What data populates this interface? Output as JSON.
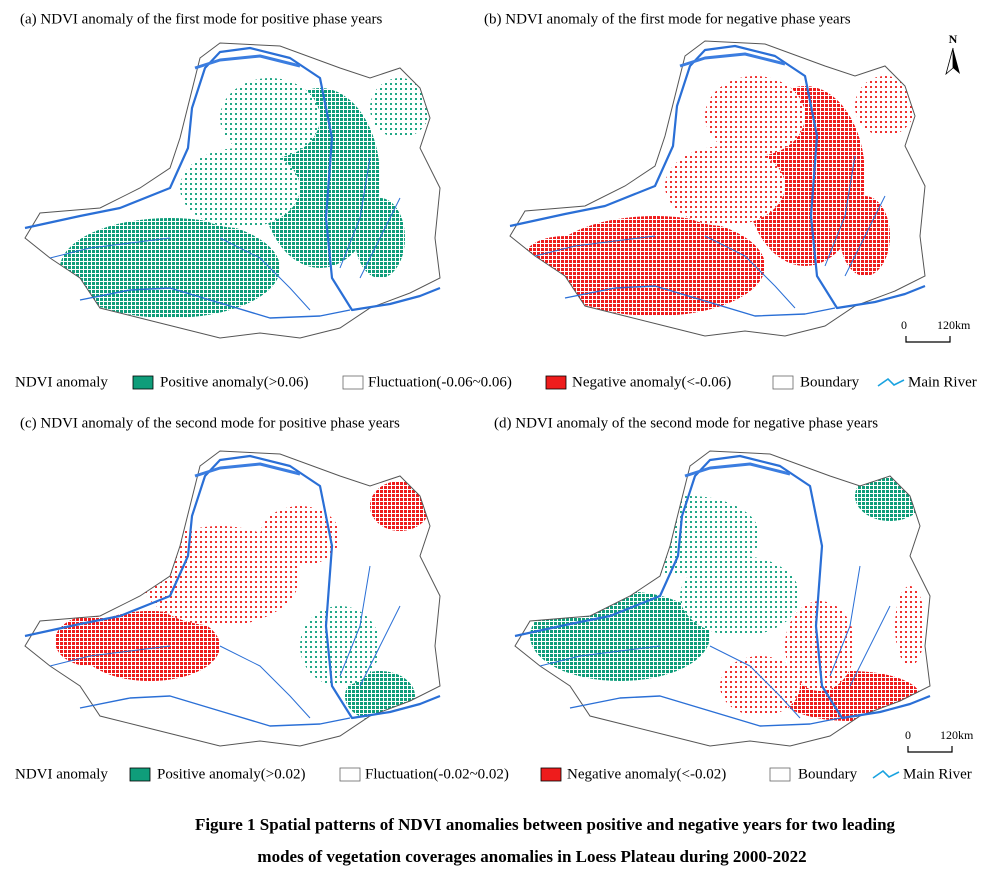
{
  "panels": [
    {
      "title": "(a) NDVI anomaly of the first mode for positive phase years"
    },
    {
      "title": "(b) NDVI anomaly of the first mode for negative phase years"
    },
    {
      "title": "(c) NDVI anomaly of the second mode for positive phase years"
    },
    {
      "title": "(d) NDVI anomaly of the second mode for negative phase years"
    }
  ],
  "north_label": "N",
  "scale_bars": [
    {
      "start": "0",
      "end": "120km"
    },
    {
      "start": "0",
      "end": "120km"
    }
  ],
  "legends": [
    {
      "title": "NDVI anomaly",
      "items": [
        "Positive anomaly(>0.06)",
        "Fluctuation(-0.06~0.06)",
        "Negative anomaly(<-0.06)",
        "Boundary",
        "Main River"
      ]
    },
    {
      "title": "NDVI anomaly",
      "items": [
        "Positive anomaly(>0.02)",
        "Fluctuation(-0.02~0.02)",
        "Negative anomaly(<-0.02)",
        "Boundary",
        "Main River"
      ]
    }
  ],
  "caption": [
    "Figure 1 Spatial patterns of NDVI anomalies between positive and negative years for two leading",
    "modes of vegetation coverages anomalies in Loess Plateau during 2000-2022"
  ]
}
